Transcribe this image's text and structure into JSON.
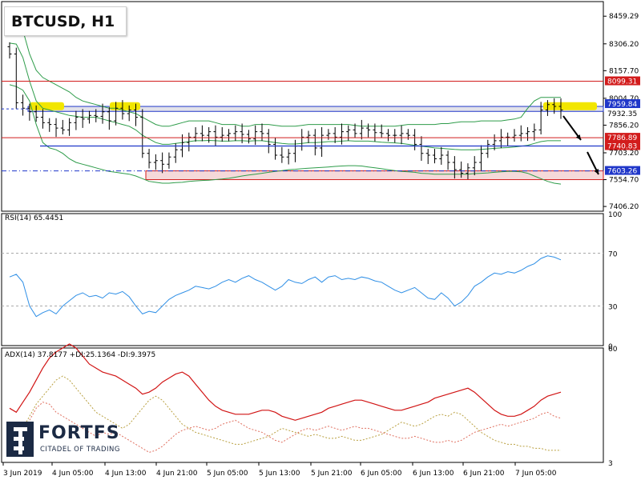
{
  "chart_title": "BTCUSD, H1",
  "rsi_label": "RSI(14) 65.4451",
  "adx_label": "ADX(14) 37.8177 +DI:25.1364 -DI:9.3975",
  "logo": {
    "name": "FORTFS",
    "tagline": "CITADEL OF TRADING"
  },
  "colors": {
    "candles": "#000000",
    "bollinger": "#2e9c4a",
    "resistance": "#d21c1c",
    "support": "#1f36c9",
    "highlight": "#f2e600",
    "rsi": "#2f8fe6",
    "adx": "#d11414",
    "plus_di": "#e07060",
    "minus_di": "#b9a040",
    "axis_label_bg_red": "#d21c1c",
    "axis_label_bg_blue": "#1f36c9"
  },
  "chart_data": [
    {
      "type": "candlestick",
      "title": "BTCUSD, H1",
      "price_axis_ticks": [
        8459.29,
        8306.2,
        8157.7,
        8004.7,
        7856.2,
        7703.2,
        7554.7,
        7406.2
      ],
      "ylim": [
        7380,
        8540
      ],
      "x_tick_labels": [
        "3 Jun 2019",
        "4 Jun 05:00",
        "4 Jun 13:00",
        "4 Jun 21:00",
        "5 Jun 05:00",
        "5 Jun 13:00",
        "5 Jun 21:00",
        "6 Jun 05:00",
        "6 Jun 13:00",
        "6 Jun 21:00",
        "7 Jun 05:00"
      ],
      "highlighted_price_labels": [
        {
          "value": "8099.31",
          "style": "red"
        },
        {
          "value": "7959.84",
          "style": "blue"
        },
        {
          "value": "7932.35",
          "style": "plain"
        },
        {
          "value": "7786.89",
          "style": "red"
        },
        {
          "value": "7740.83",
          "style": "red"
        },
        {
          "value": "7603.26",
          "style": "blue"
        }
      ],
      "levels": [
        {
          "price": 8099.31,
          "kind": "resistance"
        },
        {
          "price": 7959.84,
          "kind": "support-band-top"
        },
        {
          "price": 7932.35,
          "kind": "support-band-bottom"
        },
        {
          "price": 7786.89,
          "kind": "resistance"
        },
        {
          "price": 7740.83,
          "kind": "support"
        },
        {
          "price": 7603.26,
          "kind": "target"
        },
        {
          "price": 7575,
          "kind": "resistance"
        }
      ],
      "closes": [
        8250,
        7980,
        7950,
        7930,
        7900,
        7870,
        7860,
        7840,
        7830,
        7870,
        7900,
        7890,
        7910,
        7905,
        7930,
        7880,
        7950,
        7920,
        7940,
        7900,
        7700,
        7650,
        7660,
        7640,
        7680,
        7720,
        7760,
        7790,
        7810,
        7800,
        7820,
        7790,
        7800,
        7810,
        7820,
        7805,
        7780,
        7820,
        7810,
        7750,
        7690,
        7680,
        7700,
        7740,
        7790,
        7800,
        7730,
        7800,
        7810,
        7790,
        7820,
        7830,
        7810,
        7840,
        7830,
        7815,
        7810,
        7800,
        7800,
        7810,
        7800,
        7750,
        7700,
        7690,
        7670,
        7690,
        7650,
        7610,
        7590,
        7620,
        7650,
        7700,
        7750,
        7770,
        7790,
        7790,
        7800,
        7810,
        7820,
        7830,
        7940,
        7970,
        7960,
        7940
      ],
      "bollinger_upper": [
        8500,
        8460,
        8380,
        8250,
        8160,
        8120,
        8100,
        8080,
        8060,
        8040,
        8010,
        7990,
        7980,
        7970,
        7960,
        7950,
        7950,
        7940,
        7930,
        7920,
        7900,
        7880,
        7860,
        7850,
        7850,
        7860,
        7870,
        7880,
        7880,
        7880,
        7880,
        7870,
        7860,
        7860,
        7860,
        7850,
        7850,
        7860,
        7860,
        7860,
        7855,
        7850,
        7850,
        7850,
        7855,
        7860,
        7860,
        7860,
        7860,
        7860,
        7860,
        7860,
        7855,
        7850,
        7850,
        7850,
        7850,
        7850,
        7850,
        7855,
        7860,
        7860,
        7860,
        7860,
        7860,
        7865,
        7865,
        7870,
        7875,
        7875,
        7875,
        7880,
        7880,
        7880,
        7880,
        7885,
        7890,
        7900,
        7950,
        7990,
        8010,
        8010,
        8010,
        8010
      ],
      "bollinger_middle": [
        8310,
        8305,
        8230,
        8100,
        7990,
        7950,
        7940,
        7930,
        7920,
        7910,
        7905,
        7900,
        7900,
        7900,
        7890,
        7880,
        7870,
        7860,
        7850,
        7830,
        7800,
        7780,
        7760,
        7750,
        7750,
        7755,
        7760,
        7765,
        7770,
        7770,
        7772,
        7770,
        7768,
        7768,
        7770,
        7770,
        7768,
        7770,
        7770,
        7765,
        7760,
        7755,
        7752,
        7752,
        7755,
        7760,
        7760,
        7762,
        7765,
        7765,
        7768,
        7770,
        7768,
        7768,
        7768,
        7765,
        7762,
        7760,
        7758,
        7755,
        7750,
        7745,
        7740,
        7735,
        7730,
        7728,
        7725,
        7722,
        7720,
        7720,
        7720,
        7722,
        7725,
        7728,
        7730,
        7732,
        7735,
        7740,
        7745,
        7755,
        7765,
        7770,
        7770,
        7770
      ],
      "bollinger_lower": [
        8080,
        8070,
        8050,
        7990,
        7860,
        7760,
        7730,
        7720,
        7700,
        7670,
        7650,
        7640,
        7630,
        7620,
        7610,
        7600,
        7595,
        7590,
        7585,
        7575,
        7560,
        7545,
        7540,
        7535,
        7535,
        7538,
        7540,
        7545,
        7548,
        7550,
        7552,
        7555,
        7558,
        7562,
        7568,
        7575,
        7580,
        7585,
        7590,
        7595,
        7600,
        7605,
        7610,
        7612,
        7615,
        7618,
        7620,
        7622,
        7625,
        7628,
        7630,
        7632,
        7632,
        7630,
        7625,
        7620,
        7615,
        7610,
        7605,
        7600,
        7598,
        7595,
        7590,
        7588,
        7585,
        7585,
        7585,
        7585,
        7585,
        7585,
        7588,
        7590,
        7592,
        7595,
        7598,
        7600,
        7600,
        7598,
        7590,
        7575,
        7560,
        7545,
        7535,
        7530
      ]
    },
    {
      "type": "line",
      "name": "RSI(14)",
      "ylim": [
        0,
        100
      ],
      "levels": [
        30,
        70
      ],
      "ticks": [
        100,
        70,
        30,
        0
      ],
      "values": [
        52,
        54,
        48,
        30,
        22,
        25,
        27,
        24,
        30,
        34,
        38,
        40,
        37,
        38,
        36,
        40,
        39,
        41,
        37,
        30,
        24,
        26,
        25,
        30,
        35,
        38,
        40,
        42,
        45,
        44,
        43,
        45,
        48,
        50,
        48,
        51,
        53,
        50,
        48,
        45,
        42,
        45,
        50,
        48,
        47,
        50,
        52,
        48,
        52,
        53,
        50,
        51,
        50,
        52,
        51,
        49,
        48,
        45,
        42,
        40,
        42,
        44,
        40,
        36,
        35,
        40,
        36,
        30,
        33,
        38,
        45,
        48,
        52,
        55,
        54,
        56,
        55,
        57,
        60,
        62,
        66,
        68,
        67,
        65
      ]
    },
    {
      "type": "line",
      "name": "ADX(14)",
      "ylim": [
        3,
        60
      ],
      "ticks": [
        60,
        3
      ],
      "series": [
        {
          "name": "ADX",
          "values": [
            30,
            28,
            33,
            38,
            44,
            50,
            55,
            58,
            60,
            62,
            60,
            56,
            52,
            50,
            48,
            47,
            46,
            44,
            42,
            40,
            37,
            38,
            40,
            43,
            45,
            47,
            48,
            46,
            42,
            38,
            34,
            31,
            29,
            28,
            27,
            27,
            27,
            28,
            29,
            29,
            28,
            26,
            25,
            24,
            25,
            26,
            27,
            28,
            30,
            31,
            32,
            33,
            34,
            34,
            33,
            32,
            31,
            30,
            29,
            29,
            30,
            31,
            32,
            33,
            35,
            36,
            37,
            38,
            39,
            40,
            38,
            35,
            32,
            29,
            27,
            26,
            26,
            27,
            29,
            31,
            34,
            36,
            37,
            38
          ]
        },
        {
          "name": "+DI",
          "values": [
            12,
            14,
            18,
            24,
            30,
            33,
            32,
            28,
            26,
            24,
            22,
            20,
            18,
            16,
            18,
            17,
            18,
            16,
            14,
            12,
            10,
            8,
            9,
            11,
            14,
            17,
            19,
            20,
            21,
            20,
            19,
            20,
            22,
            23,
            24,
            22,
            20,
            19,
            18,
            16,
            14,
            13,
            15,
            17,
            19,
            20,
            19,
            20,
            21,
            20,
            19,
            20,
            21,
            20,
            20,
            19,
            18,
            17,
            16,
            15,
            15,
            16,
            15,
            14,
            13,
            13,
            14,
            13,
            14,
            16,
            18,
            19,
            20,
            21,
            22,
            21,
            22,
            23,
            24,
            25,
            27,
            28,
            26,
            25
          ]
        },
        {
          "name": "-DI",
          "values": [
            14,
            16,
            20,
            26,
            32,
            36,
            40,
            44,
            46,
            44,
            40,
            36,
            32,
            28,
            26,
            24,
            22,
            20,
            22,
            26,
            30,
            34,
            36,
            34,
            30,
            26,
            22,
            20,
            18,
            17,
            16,
            15,
            14,
            13,
            12,
            12,
            13,
            14,
            15,
            16,
            18,
            20,
            19,
            18,
            17,
            16,
            17,
            16,
            15,
            15,
            16,
            15,
            14,
            14,
            15,
            16,
            17,
            19,
            21,
            23,
            22,
            21,
            22,
            24,
            26,
            27,
            26,
            28,
            27,
            24,
            21,
            18,
            16,
            14,
            13,
            12,
            12,
            11,
            11,
            10,
            10,
            9,
            9,
            9
          ]
        }
      ]
    }
  ]
}
